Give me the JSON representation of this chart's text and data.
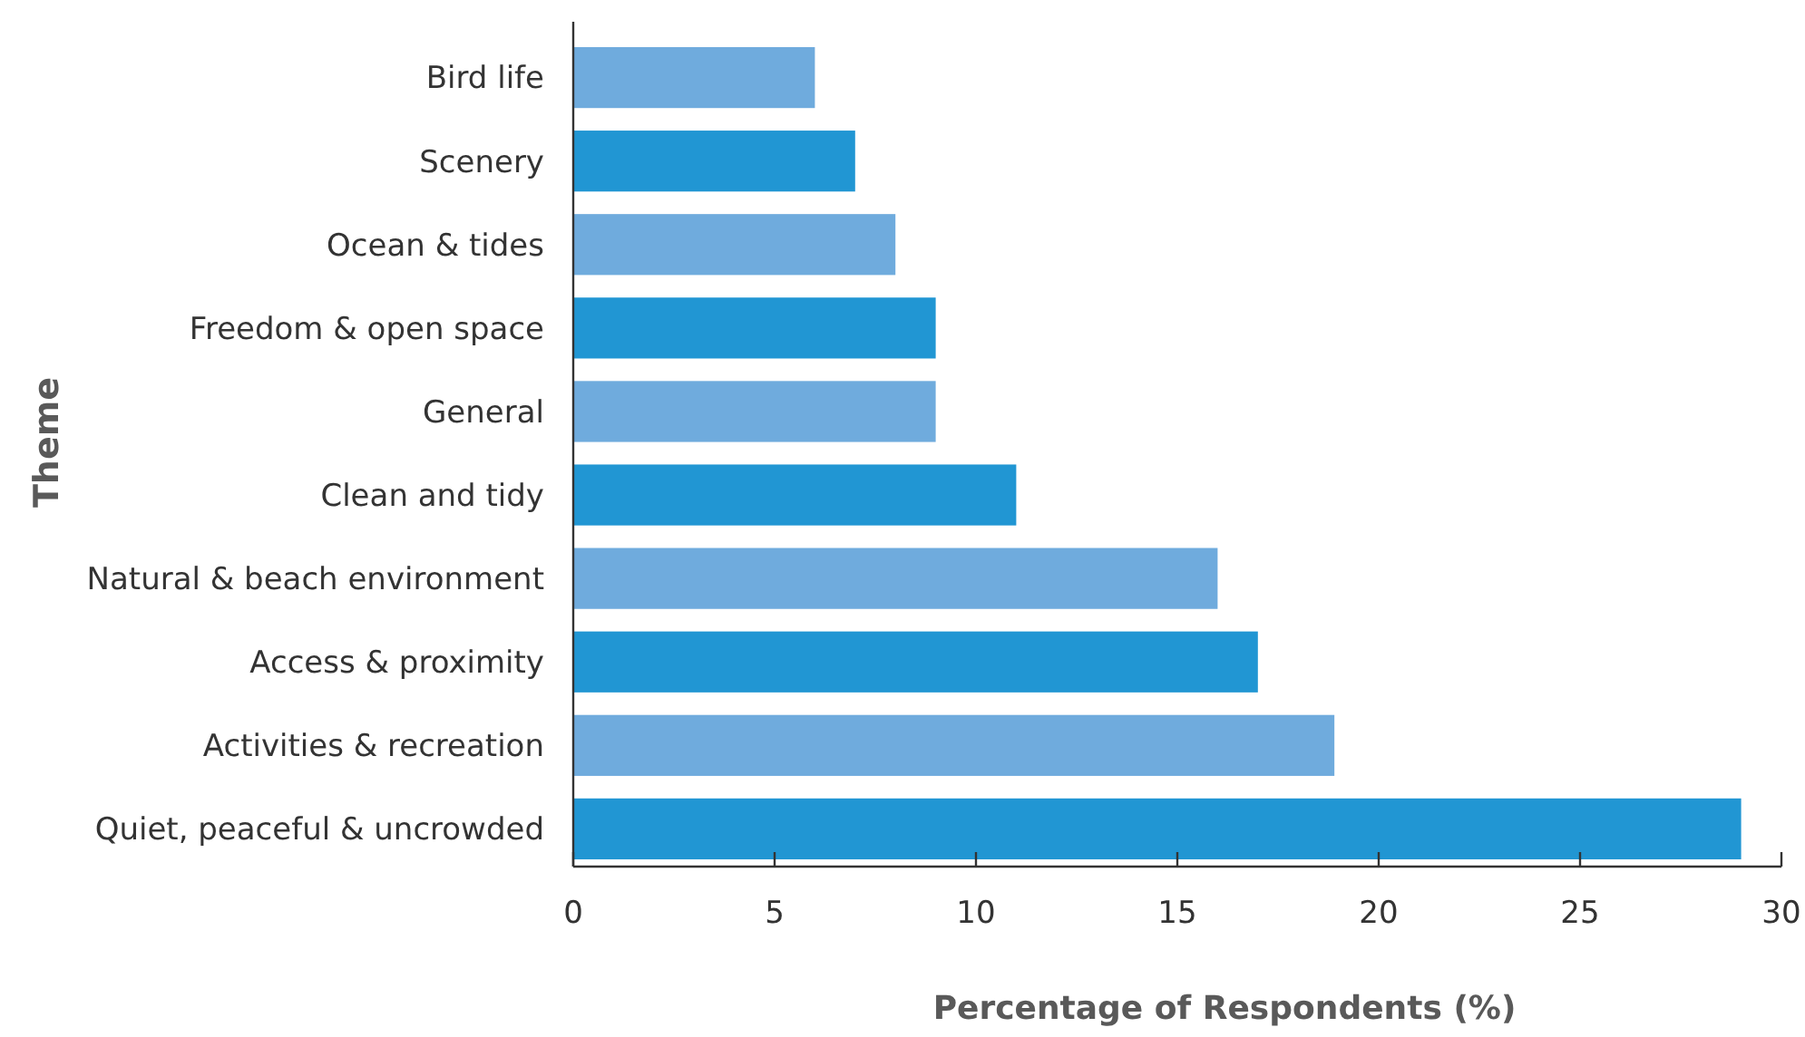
{
  "chart_data": {
    "type": "bar",
    "orientation": "horizontal",
    "xlabel": "Percentage of Respondents (%)",
    "ylabel": "Theme",
    "categories": [
      "Bird life",
      "Scenery",
      "Ocean & tides",
      "Freedom & open space",
      "General",
      "Clean and tidy",
      "Natural & beach environment",
      "Access & proximity",
      "Activities & recreation",
      "Quiet, peaceful & uncrowded"
    ],
    "values": [
      6,
      7,
      8,
      9,
      9,
      11,
      16,
      17,
      18.9,
      29
    ],
    "colors": [
      "#6fabdd",
      "#2196d3",
      "#6fabdd",
      "#2196d3",
      "#6fabdd",
      "#2196d3",
      "#6fabdd",
      "#2196d3",
      "#6fabdd",
      "#2196d3"
    ],
    "xlim": [
      0,
      30
    ],
    "xticks": [
      0,
      5,
      10,
      15,
      20,
      25,
      30
    ],
    "grid": false
  }
}
